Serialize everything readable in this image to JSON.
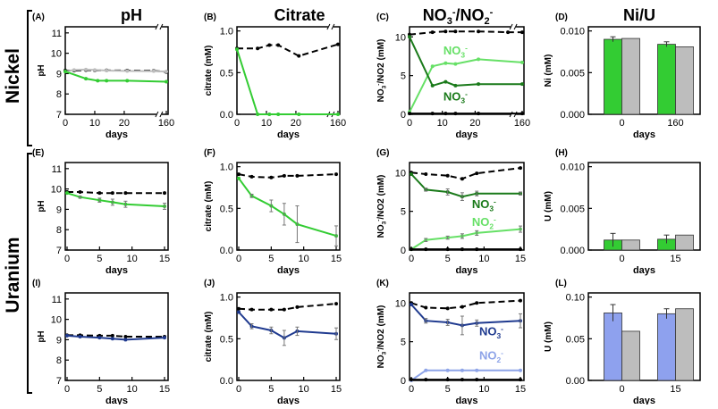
{
  "column_titles": [
    "pH",
    "Citrate",
    "NO3-/NO2-",
    "Ni/U"
  ],
  "column_title_parts": {
    "nitrate_main": "NO",
    "nitrate_sub": "3",
    "nitrate_sup": "-",
    "slash": "/",
    "nitrite_main": "NO",
    "nitrite_sub": "2",
    "nitrite_sup": "-"
  },
  "row_labels": [
    "Nickel",
    "Uranium"
  ],
  "colors": {
    "nickel_green": "#33cc33",
    "nitrate_dark_green": "#1a7a1a",
    "nitrite_light_green": "#66e066",
    "uranium_blue": "#1f3a8f",
    "uranium_light_blue": "#8ea4e8",
    "bar_blue": "#8ea1ee",
    "bar_gray": "#bdbdbd",
    "control": "#000000"
  },
  "chart_data": [
    {
      "type": "line",
      "panel": "(A)",
      "ylabel": "pH",
      "xlabel": "days",
      "ylim": [
        7,
        11.3
      ],
      "yticks": [
        7,
        8,
        9,
        10,
        11
      ],
      "xticks": [
        0,
        10,
        20,
        160
      ],
      "axis_break": true,
      "series": [
        {
          "name": "control",
          "style": "dashed",
          "color": "control",
          "x": [
            0,
            3,
            7,
            10,
            14,
            21,
            30,
            160
          ],
          "y": [
            9.15,
            9.15,
            9.17,
            9.16,
            9.16,
            9.15,
            9.14,
            9.08
          ]
        },
        {
          "name": "gray",
          "style": "solid",
          "color": "bar_gray",
          "x": [
            0,
            3,
            7,
            10,
            14,
            21,
            30,
            160
          ],
          "y": [
            9.1,
            9.18,
            9.2,
            9.18,
            9.15,
            9.13,
            9.12,
            9.1
          ]
        },
        {
          "name": "treatment",
          "style": "solid",
          "color": "nickel_green",
          "x": [
            0,
            7,
            11,
            14,
            21,
            160
          ],
          "y": [
            9.1,
            8.75,
            8.65,
            8.65,
            8.65,
            8.6
          ]
        }
      ]
    },
    {
      "type": "line",
      "panel": "(B)",
      "ylabel": "citrate (mM)",
      "xlabel": "days",
      "ylim": [
        0,
        1.05
      ],
      "yticks": [
        0.0,
        0.5,
        1.0
      ],
      "ytick_labels": [
        "0.0",
        "0.5",
        "1.0"
      ],
      "xticks": [
        0,
        10,
        20,
        160
      ],
      "axis_break": true,
      "series": [
        {
          "name": "control",
          "style": "dashed",
          "color": "control",
          "x": [
            0,
            7,
            11,
            14,
            21,
            160
          ],
          "y": [
            0.79,
            0.79,
            0.83,
            0.83,
            0.7,
            0.84
          ]
        },
        {
          "name": "treatment",
          "style": "solid",
          "color": "nickel_green",
          "x": [
            0,
            7,
            11,
            14,
            21,
            160
          ],
          "y": [
            0.78,
            0.0,
            0.0,
            0.0,
            0.0,
            0.0
          ]
        }
      ]
    },
    {
      "type": "line",
      "panel": "(C)",
      "ylabel": "NO3-/NO2 (mM)",
      "xlabel": "days",
      "ylim": [
        0,
        11.3
      ],
      "yticks": [
        0,
        5,
        10
      ],
      "xticks": [
        0,
        10,
        20,
        160
      ],
      "axis_break": true,
      "annotations": [
        {
          "text": "NO3-",
          "color": "nitrite_light_green",
          "x": 14,
          "y": 7.7
        },
        {
          "text": "NO3-",
          "color": "nitrate_dark_green",
          "x": 14,
          "y": 1.8
        }
      ],
      "series": [
        {
          "name": "control",
          "style": "dashed",
          "color": "control",
          "x": [
            0,
            7,
            11,
            14,
            21,
            30,
            160
          ],
          "y": [
            10.3,
            10.6,
            10.7,
            10.7,
            10.7,
            10.6,
            10.6
          ]
        },
        {
          "name": "light",
          "style": "solid",
          "color": "nitrite_light_green",
          "x": [
            0,
            7,
            11,
            14,
            21,
            160
          ],
          "y": [
            0.3,
            6.2,
            6.6,
            6.5,
            7.1,
            6.7
          ]
        },
        {
          "name": "dark",
          "style": "solid",
          "color": "nitrate_dark_green",
          "x": [
            0,
            7,
            11,
            14,
            21,
            160
          ],
          "y": [
            10.0,
            3.7,
            4.2,
            3.7,
            3.9,
            3.9
          ]
        },
        {
          "name": "baseline",
          "style": "solid",
          "color": "control",
          "x": [
            0,
            7,
            11,
            14,
            21,
            160
          ],
          "y": [
            0.1,
            0.1,
            0.1,
            0.1,
            0.1,
            0.1
          ]
        }
      ]
    },
    {
      "type": "bar",
      "panel": "(D)",
      "ylabel": "Ni (mM)",
      "xlabel": "days",
      "ylim": [
        0,
        0.0105
      ],
      "yticks": [
        0.0,
        0.005,
        0.01
      ],
      "ytick_labels": [
        "0.000",
        "0.005",
        "0.010"
      ],
      "categories": [
        "0",
        "160"
      ],
      "series": [
        {
          "name": "treatment",
          "color": "nickel_green",
          "values": [
            0.009,
            0.0084
          ],
          "err": [
            0.0003,
            0.0003
          ]
        },
        {
          "name": "control",
          "color": "bar_gray",
          "values": [
            0.0091,
            0.0081
          ],
          "err": [
            0,
            0
          ]
        }
      ]
    },
    {
      "type": "line",
      "panel": "(E)",
      "ylabel": "pH",
      "xlabel": "days",
      "ylim": [
        7,
        11.3
      ],
      "yticks": [
        7,
        8,
        9,
        10,
        11
      ],
      "xticks": [
        0,
        5,
        10,
        15
      ],
      "series": [
        {
          "name": "control",
          "style": "dashed",
          "color": "control",
          "x": [
            0,
            2,
            5,
            7,
            9,
            15
          ],
          "y": [
            9.85,
            9.85,
            9.8,
            9.8,
            9.8,
            9.8
          ]
        },
        {
          "name": "treatment",
          "style": "solid",
          "color": "nickel_green",
          "x": [
            0,
            2,
            5,
            7,
            9,
            15
          ],
          "y": [
            9.8,
            9.6,
            9.45,
            9.35,
            9.25,
            9.15
          ],
          "err": [
            0,
            0.05,
            0.1,
            0.15,
            0.15,
            0.15
          ]
        }
      ]
    },
    {
      "type": "line",
      "panel": "(F)",
      "ylabel": "citrate (mM)",
      "xlabel": "days",
      "ylim": [
        0,
        1.05
      ],
      "yticks": [
        0.0,
        0.5,
        1.0
      ],
      "ytick_labels": [
        "0.0",
        "0.5",
        "1.0"
      ],
      "xticks": [
        0,
        5,
        10,
        15
      ],
      "series": [
        {
          "name": "control",
          "style": "dashed",
          "color": "control",
          "x": [
            0,
            2,
            5,
            7,
            9,
            15
          ],
          "y": [
            0.91,
            0.88,
            0.87,
            0.89,
            0.89,
            0.91
          ]
        },
        {
          "name": "treatment",
          "style": "solid",
          "color": "nickel_green",
          "x": [
            0,
            2,
            5,
            7,
            9,
            15
          ],
          "y": [
            0.86,
            0.65,
            0.53,
            0.43,
            0.31,
            0.17
          ],
          "err": [
            0,
            0.02,
            0.07,
            0.13,
            0.22,
            0.12
          ]
        }
      ]
    },
    {
      "type": "line",
      "panel": "(G)",
      "ylabel": "NO3-/NO2 (mM)",
      "xlabel": "days",
      "ylim": [
        0,
        11.3
      ],
      "yticks": [
        0,
        5,
        10
      ],
      "xticks": [
        0,
        5,
        10,
        15
      ],
      "annotations": [
        {
          "text": "NO3-",
          "color": "nitrate_dark_green",
          "x": 10,
          "y": 5.4
        },
        {
          "text": "NO2-",
          "color": "nitrite_light_green",
          "x": 10,
          "y": 3.1
        }
      ],
      "series": [
        {
          "name": "control",
          "style": "dashed",
          "color": "control",
          "x": [
            0,
            2,
            5,
            7,
            9,
            15
          ],
          "y": [
            10.0,
            9.8,
            9.6,
            9.2,
            9.9,
            10.6
          ]
        },
        {
          "name": "dark",
          "style": "solid",
          "color": "nitrate_dark_green",
          "x": [
            0,
            2,
            5,
            7,
            9,
            15
          ],
          "y": [
            9.8,
            7.8,
            7.5,
            6.9,
            7.3,
            7.3
          ],
          "err": [
            0,
            0.2,
            0.4,
            0.5,
            0.3,
            0.2
          ]
        },
        {
          "name": "light",
          "style": "solid",
          "color": "nitrite_light_green",
          "x": [
            0,
            2,
            5,
            7,
            9,
            15
          ],
          "y": [
            0.1,
            1.3,
            1.6,
            1.8,
            2.2,
            2.7
          ],
          "err": [
            0,
            0.2,
            0.2,
            0.3,
            0.3,
            0.4
          ]
        },
        {
          "name": "baseline",
          "style": "solid",
          "color": "control",
          "x": [
            0,
            2,
            5,
            7,
            9,
            15
          ],
          "y": [
            0.1,
            0.1,
            0.1,
            0.1,
            0.1,
            0.1
          ]
        }
      ]
    },
    {
      "type": "bar",
      "panel": "(H)",
      "ylabel": "U (mM)",
      "xlabel": "days",
      "ylim": [
        0,
        0.0105
      ],
      "yticks": [
        0.0,
        0.005,
        0.01
      ],
      "ytick_labels": [
        "0.000",
        "0.005",
        "0.010"
      ],
      "categories": [
        "0",
        "15"
      ],
      "series": [
        {
          "name": "treatment",
          "color": "nickel_green",
          "values": [
            0.0012,
            0.0013
          ],
          "err": [
            0.0008,
            0.0005
          ]
        },
        {
          "name": "control",
          "color": "bar_gray",
          "values": [
            0.0012,
            0.0018
          ],
          "err": [
            0,
            0
          ]
        }
      ]
    },
    {
      "type": "line",
      "panel": "(I)",
      "ylabel": "pH",
      "xlabel": "days",
      "ylim": [
        7,
        11.3
      ],
      "yticks": [
        7,
        8,
        9,
        10,
        11
      ],
      "xticks": [
        0,
        5,
        10,
        15
      ],
      "series": [
        {
          "name": "control",
          "style": "dashed",
          "color": "control",
          "x": [
            0,
            2,
            5,
            7,
            9,
            15
          ],
          "y": [
            9.22,
            9.22,
            9.2,
            9.2,
            9.15,
            9.15
          ]
        },
        {
          "name": "treatment",
          "style": "solid",
          "color": "uranium_blue",
          "x": [
            0,
            2,
            5,
            7,
            9,
            15
          ],
          "y": [
            9.2,
            9.15,
            9.1,
            9.05,
            9.0,
            9.1
          ]
        }
      ]
    },
    {
      "type": "line",
      "panel": "(J)",
      "ylabel": "citrate (mM)",
      "xlabel": "days",
      "ylim": [
        0,
        1.05
      ],
      "yticks": [
        0.0,
        0.5,
        1.0
      ],
      "ytick_labels": [
        "0.0",
        "0.5",
        "1.0"
      ],
      "xticks": [
        0,
        5,
        10,
        15
      ],
      "series": [
        {
          "name": "control",
          "style": "dashed",
          "color": "control",
          "x": [
            0,
            2,
            5,
            7,
            9,
            15
          ],
          "y": [
            0.86,
            0.85,
            0.85,
            0.85,
            0.88,
            0.92
          ]
        },
        {
          "name": "treatment",
          "style": "solid",
          "color": "uranium_blue",
          "x": [
            0,
            2,
            5,
            7,
            9,
            15
          ],
          "y": [
            0.82,
            0.65,
            0.6,
            0.51,
            0.59,
            0.56
          ],
          "err": [
            0,
            0.03,
            0.04,
            0.09,
            0.05,
            0.07
          ]
        }
      ]
    },
    {
      "type": "line",
      "panel": "(K)",
      "ylabel": "NO3-/NO2 (mM)",
      "xlabel": "days",
      "ylim": [
        0,
        11.3
      ],
      "yticks": [
        0,
        5,
        10
      ],
      "xticks": [
        0,
        5,
        10,
        15
      ],
      "annotations": [
        {
          "text": "NO3-",
          "color": "uranium_blue",
          "x": 11,
          "y": 5.8
        },
        {
          "text": "NO2-",
          "color": "uranium_light_blue",
          "x": 11,
          "y": 2.7
        }
      ],
      "series": [
        {
          "name": "control",
          "style": "dashed",
          "color": "control",
          "x": [
            0,
            2,
            5,
            7,
            9,
            15
          ],
          "y": [
            10.0,
            9.4,
            9.3,
            9.5,
            10.0,
            10.3
          ]
        },
        {
          "name": "dark",
          "style": "solid",
          "color": "uranium_blue",
          "x": [
            0,
            2,
            5,
            7,
            9,
            15
          ],
          "y": [
            9.8,
            7.7,
            7.5,
            7.1,
            7.4,
            7.7
          ],
          "err": [
            0,
            0.3,
            0.4,
            1.2,
            0.4,
            0.9
          ]
        },
        {
          "name": "light",
          "style": "solid",
          "color": "uranium_light_blue",
          "x": [
            0,
            2,
            5,
            7,
            9,
            15
          ],
          "y": [
            0.0,
            1.3,
            1.3,
            1.3,
            1.3,
            1.3
          ]
        },
        {
          "name": "baseline",
          "style": "solid",
          "color": "control",
          "x": [
            0,
            2,
            5,
            7,
            9,
            15
          ],
          "y": [
            0.1,
            0.1,
            0.1,
            0.1,
            0.1,
            0.1
          ]
        }
      ]
    },
    {
      "type": "bar",
      "panel": "(L)",
      "ylabel": "U (mM)",
      "xlabel": "days",
      "ylim": [
        0,
        0.105
      ],
      "yticks": [
        0.0,
        0.05,
        0.1
      ],
      "ytick_labels": [
        "0.00",
        "0.05",
        "0.10"
      ],
      "categories": [
        "0",
        "15"
      ],
      "series": [
        {
          "name": "treatment",
          "color": "bar_blue",
          "values": [
            0.081,
            0.08
          ],
          "err": [
            0.01,
            0.006
          ]
        },
        {
          "name": "control",
          "color": "bar_gray",
          "values": [
            0.059,
            0.086
          ],
          "err": [
            0,
            0
          ]
        }
      ]
    }
  ]
}
